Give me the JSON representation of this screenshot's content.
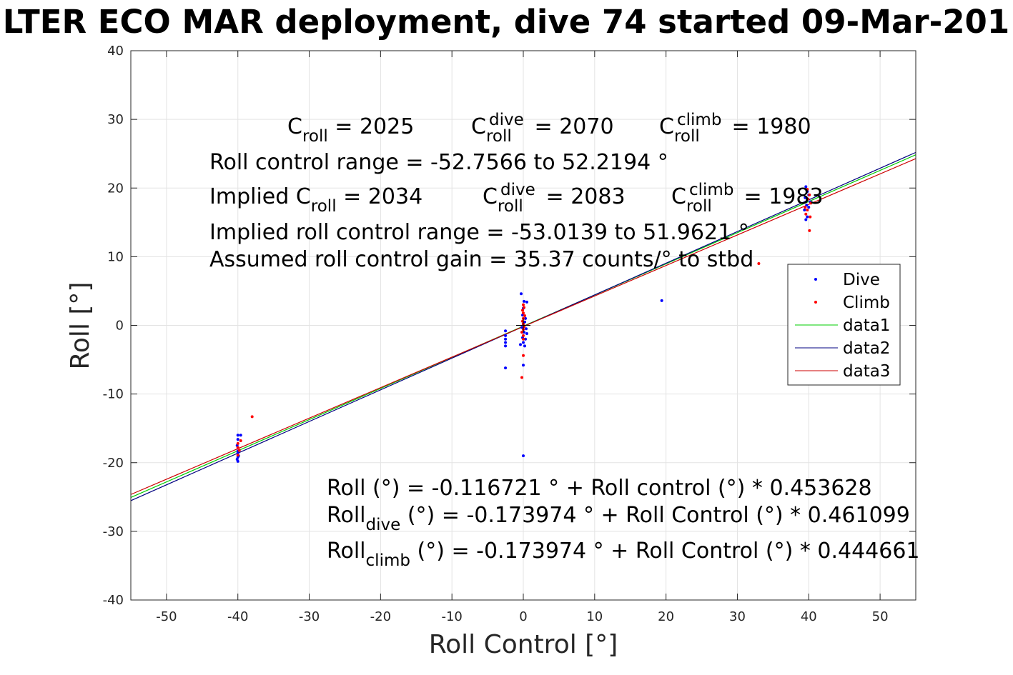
{
  "chart_data": {
    "type": "scatter",
    "title": "LTER ECO MAR deployment, dive 74 started 09-Mar-201",
    "xlabel": "Roll Control [°]",
    "ylabel": "Roll [°]",
    "xlim": [
      -55,
      55
    ],
    "ylim": [
      -40,
      40
    ],
    "xticks": [
      "-50",
      "-40",
      "-30",
      "-20",
      "-10",
      "0",
      "10",
      "20",
      "30",
      "40",
      "50"
    ],
    "xtick_values": [
      -50,
      -40,
      -30,
      -20,
      -10,
      0,
      10,
      20,
      30,
      40,
      50
    ],
    "yticks": [
      "40",
      "30",
      "20",
      "10",
      "0",
      "-10",
      "-20",
      "-30",
      "-40"
    ],
    "ytick_values": [
      40,
      30,
      20,
      10,
      0,
      -10,
      -20,
      -30,
      -40
    ],
    "grid": true,
    "legend_position": "right",
    "legend": [
      "Dive",
      "Climb",
      "data1",
      "data2",
      "data3"
    ],
    "series": [
      {
        "name": "Dive",
        "kind": "points",
        "color": "#0000ff",
        "points": [
          [
            -40.0,
            -16.0
          ],
          [
            -39.6,
            -16.0
          ],
          [
            -40.0,
            -16.6
          ],
          [
            -40.1,
            -17.5
          ],
          [
            -40.0,
            -18.3
          ],
          [
            -40.0,
            -18.6
          ],
          [
            -39.9,
            -19.0
          ],
          [
            -40.0,
            -19.2
          ],
          [
            -40.1,
            -19.5
          ],
          [
            -40.0,
            -19.8
          ],
          [
            -2.5,
            -0.8
          ],
          [
            -2.5,
            -1.5
          ],
          [
            -2.5,
            -2.0
          ],
          [
            -2.5,
            -2.5
          ],
          [
            -2.5,
            -3.0
          ],
          [
            -2.5,
            -6.2
          ],
          [
            -0.3,
            4.6
          ],
          [
            0.1,
            3.5
          ],
          [
            0.5,
            3.4
          ],
          [
            0.0,
            2.5
          ],
          [
            -0.1,
            1.5
          ],
          [
            0.3,
            1.0
          ],
          [
            0.2,
            0.5
          ],
          [
            0.0,
            0.2
          ],
          [
            -0.2,
            -0.3
          ],
          [
            0.4,
            -0.5
          ],
          [
            0.1,
            -1.0
          ],
          [
            0.5,
            -1.2
          ],
          [
            -0.1,
            -1.8
          ],
          [
            0.3,
            -2.0
          ],
          [
            0.0,
            -2.5
          ],
          [
            -0.4,
            -2.8
          ],
          [
            0.2,
            -3.0
          ],
          [
            0.0,
            -5.8
          ],
          [
            0.0,
            -19.0
          ],
          [
            19.4,
            3.6
          ],
          [
            39.6,
            20.2
          ],
          [
            39.8,
            19.5
          ],
          [
            40.0,
            19.0
          ],
          [
            39.5,
            18.6
          ],
          [
            40.2,
            18.0
          ],
          [
            39.7,
            17.5
          ],
          [
            40.0,
            17.2
          ],
          [
            39.4,
            16.8
          ],
          [
            39.8,
            15.8
          ],
          [
            39.6,
            15.4
          ]
        ]
      },
      {
        "name": "Climb",
        "kind": "points",
        "color": "#ff0000",
        "points": [
          [
            -38.0,
            -13.3
          ],
          [
            -39.6,
            -16.8
          ],
          [
            -40.0,
            -17.2
          ],
          [
            -40.0,
            -17.8
          ],
          [
            -39.8,
            -18.2
          ],
          [
            -40.0,
            -18.9
          ],
          [
            0.0,
            3.0
          ],
          [
            0.1,
            2.6
          ],
          [
            -0.1,
            2.2
          ],
          [
            0.0,
            1.8
          ],
          [
            0.2,
            1.4
          ],
          [
            0.0,
            1.0
          ],
          [
            -0.1,
            0.6
          ],
          [
            0.0,
            0.2
          ],
          [
            0.1,
            -0.2
          ],
          [
            0.0,
            -0.6
          ],
          [
            -0.2,
            -1.0
          ],
          [
            0.0,
            -1.5
          ],
          [
            0.0,
            -2.0
          ],
          [
            0.0,
            -4.4
          ],
          [
            -0.2,
            -7.6
          ],
          [
            33.0,
            9.0
          ],
          [
            39.8,
            19.8
          ],
          [
            40.1,
            19.0
          ],
          [
            39.9,
            18.4
          ],
          [
            40.3,
            17.8
          ],
          [
            39.5,
            17.2
          ],
          [
            39.8,
            16.8
          ],
          [
            39.6,
            16.2
          ],
          [
            40.2,
            15.8
          ],
          [
            40.1,
            13.8
          ]
        ]
      },
      {
        "name": "data1",
        "kind": "line",
        "color": "#00cc00",
        "x": [
          -55,
          55
        ],
        "y": [
          -25.07,
          24.84
        ]
      },
      {
        "name": "data2",
        "kind": "line",
        "color": "#000080",
        "x": [
          -55,
          55
        ],
        "y": [
          -25.53,
          25.19
        ]
      },
      {
        "name": "data3",
        "kind": "line",
        "color": "#cc0000",
        "x": [
          -55,
          55
        ],
        "y": [
          -24.63,
          24.28
        ]
      }
    ],
    "annotations": {
      "c_roll": {
        "base": "C",
        "sub": "roll",
        "text": " = 2025"
      },
      "c_roll_dive": {
        "base": "C",
        "sub": "roll",
        "sup": "dive",
        "text": " = 2070"
      },
      "c_roll_climb": {
        "base": "C",
        "sub": "roll",
        "sup": "climb",
        "text": " = 1980"
      },
      "range": "Roll control range = -52.7566 to 52.2194 °",
      "implied_c_roll": {
        "base": "Implied C",
        "sub": "roll",
        "text": " = 2034"
      },
      "implied_c_dive": {
        "base": "C",
        "sub": "roll",
        "sup": "dive",
        "text": " = 2083"
      },
      "implied_c_climb": {
        "base": "C",
        "sub": "roll",
        "sup": "climb",
        "text": " = 1983"
      },
      "implied_range": "Implied roll control range = -53.0139 to 51.9621 °",
      "gain": "Assumed roll control gain = 35.37 counts/° to stbd",
      "fit": "Roll (°) = -0.116721 ° + Roll control (°) * 0.453628",
      "fit_dive": {
        "base": "Roll",
        "sub": "dive",
        "text": " (°) = -0.173974 ° + Roll Control (°) * 0.461099"
      },
      "fit_climb": {
        "base": "Roll",
        "sub": "climb",
        "text": " (°) = -0.173974 ° + Roll Control (°) * 0.444661"
      }
    }
  }
}
